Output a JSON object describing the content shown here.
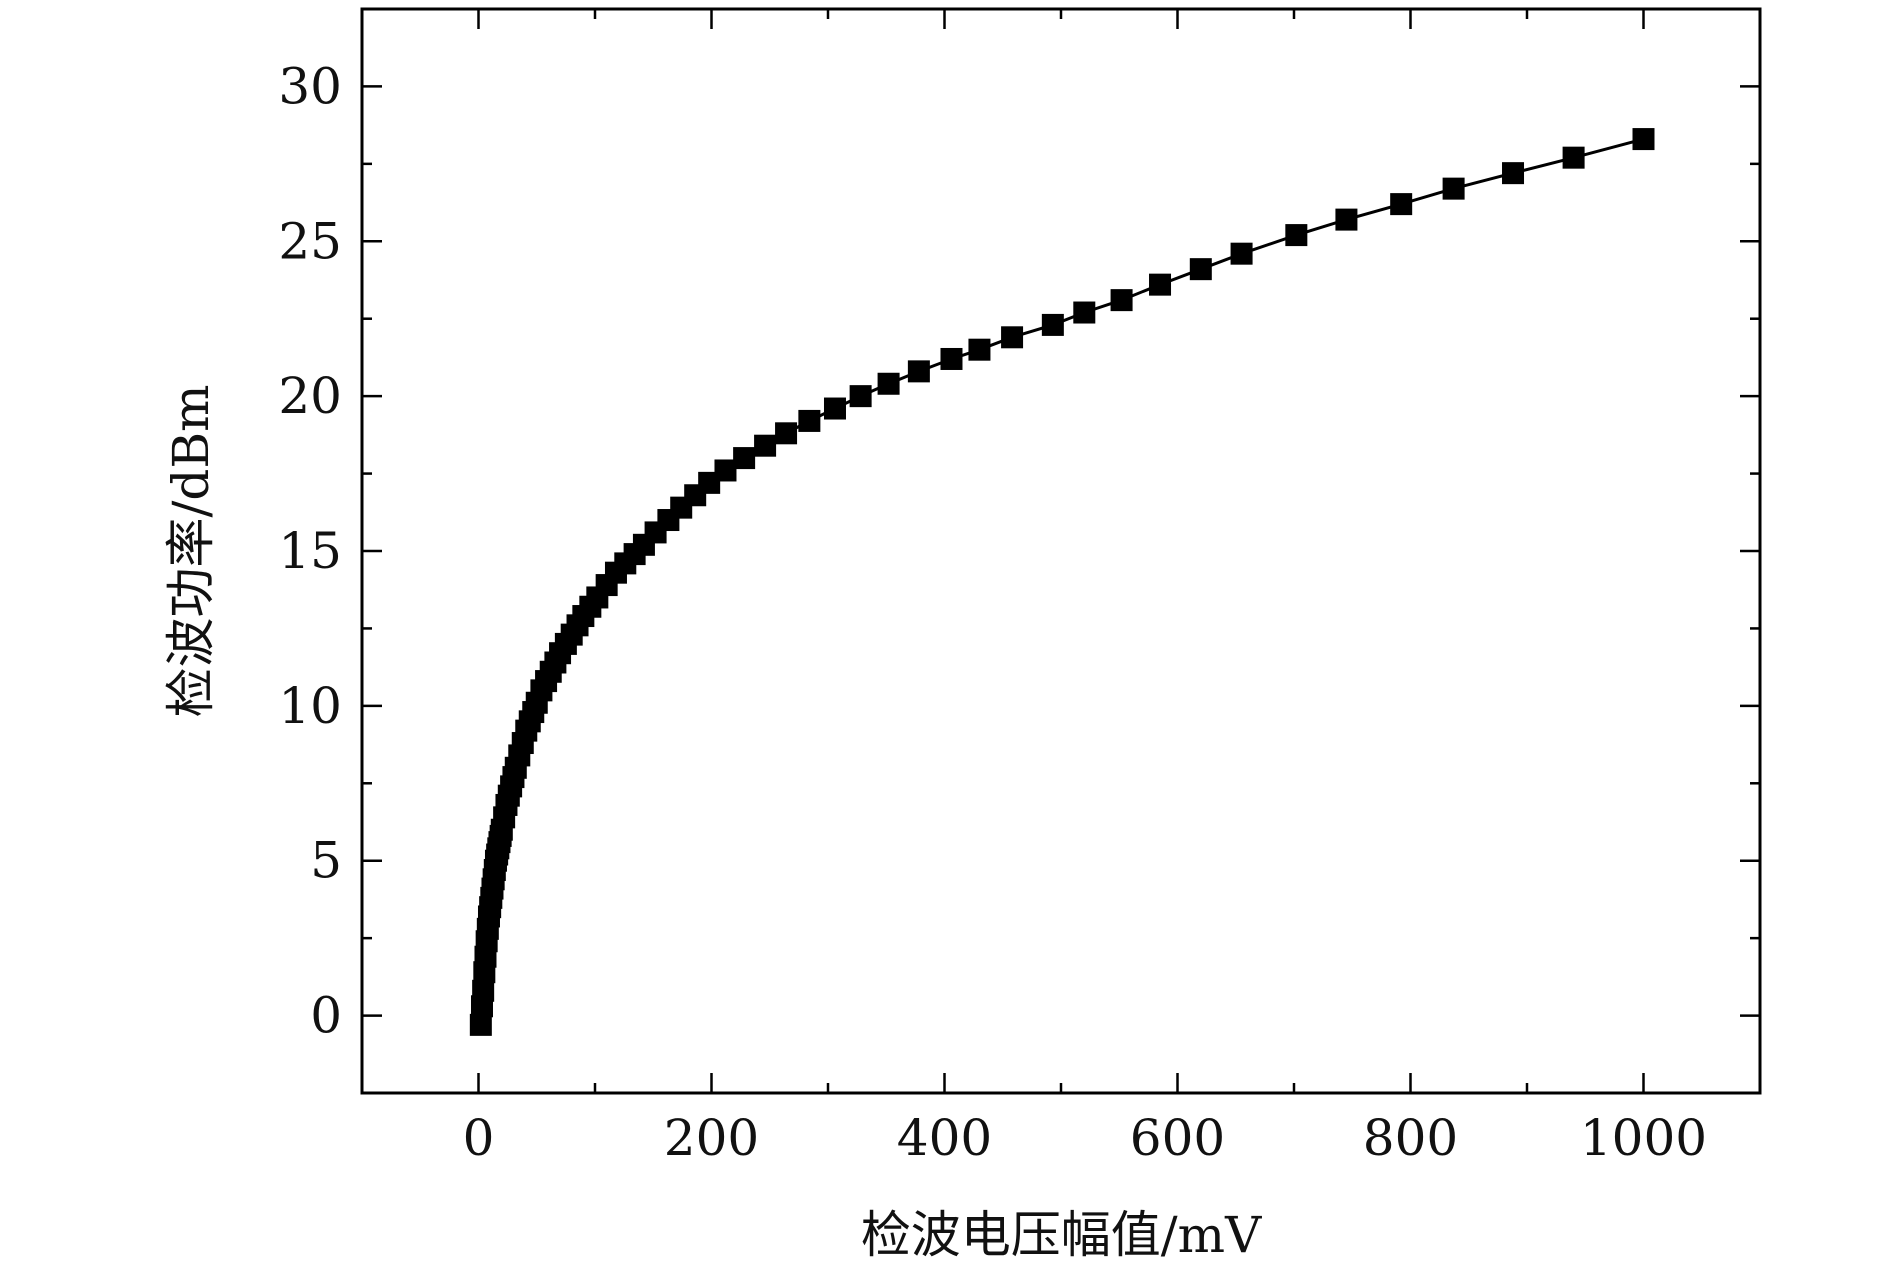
{
  "chart_data": {
    "type": "line",
    "title": "",
    "xlabel": "检波电压幅值/mV",
    "ylabel": "检波功率/dBm",
    "xlim": [
      -100,
      1100
    ],
    "ylim": [
      -2.5,
      32.5
    ],
    "x_ticks": [
      0,
      200,
      400,
      600,
      800,
      1000
    ],
    "y_ticks": [
      0,
      5,
      10,
      15,
      20,
      25,
      30
    ],
    "x_minor_step": 100,
    "y_minor_step": 2.5,
    "grid": false,
    "legend": "none",
    "marker": "square",
    "series": [
      {
        "x": [
          2,
          3,
          4,
          5,
          6,
          7,
          8,
          9,
          10,
          11,
          12,
          13,
          14,
          15,
          16,
          17,
          18,
          19,
          20,
          22,
          24,
          26,
          28,
          30,
          32,
          35,
          38,
          41,
          44,
          47,
          50,
          54,
          58,
          62,
          66,
          70,
          75,
          80,
          85,
          90,
          96,
          102,
          110,
          118,
          126,
          134,
          142,
          152,
          163,
          174,
          186,
          198,
          212,
          228,
          246,
          264,
          284,
          306,
          328,
          352,
          378,
          406,
          430,
          458,
          493,
          520,
          552,
          585,
          620,
          655,
          702,
          745,
          792,
          837,
          888,
          940,
          1000
        ],
        "y": [
          -0.3,
          0.3,
          0.8,
          1.4,
          1.9,
          2.4,
          2.8,
          3.2,
          3.5,
          3.8,
          4.1,
          4.4,
          4.7,
          5.0,
          5.2,
          5.4,
          5.6,
          5.8,
          6.0,
          6.4,
          6.8,
          7.1,
          7.4,
          7.7,
          8.0,
          8.4,
          8.8,
          9.2,
          9.5,
          9.8,
          10.1,
          10.5,
          10.8,
          11.1,
          11.4,
          11.7,
          12.0,
          12.3,
          12.6,
          12.9,
          13.2,
          13.5,
          13.9,
          14.3,
          14.6,
          14.9,
          15.2,
          15.6,
          16.0,
          16.4,
          16.8,
          17.2,
          17.6,
          18.0,
          18.4,
          18.8,
          19.2,
          19.6,
          20.0,
          20.4,
          20.8,
          21.2,
          21.5,
          21.9,
          22.3,
          22.7,
          23.1,
          23.6,
          24.1,
          24.6,
          25.2,
          25.7,
          26.2,
          26.7,
          27.2,
          27.7,
          28.3
        ]
      }
    ]
  }
}
